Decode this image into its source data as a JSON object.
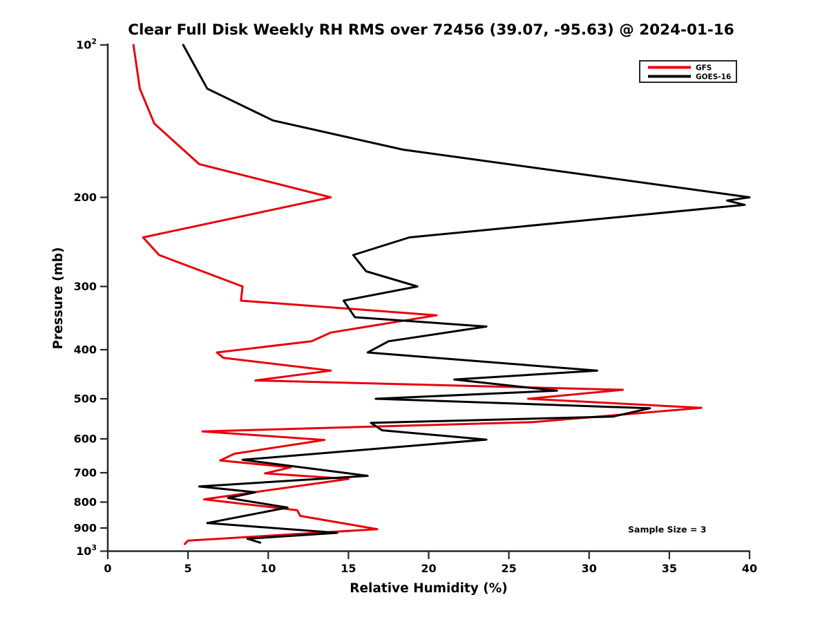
{
  "title": "Clear Full Disk Weekly RH RMS over 72456 (39.07, -95.63) @ 2024-01-16",
  "axes": {
    "x": {
      "label": "Relative Humidity (%)",
      "min": 0,
      "max": 40,
      "ticks": [
        0,
        5,
        10,
        15,
        20,
        25,
        30,
        35,
        40
      ]
    },
    "y": {
      "label": "Pressure (mb)",
      "scale": "log",
      "min": 100,
      "max": 1000,
      "inverted": true,
      "ticks": [
        100,
        200,
        300,
        400,
        500,
        600,
        700,
        800,
        900,
        1000
      ],
      "tick_labels": [
        "10^2",
        "200",
        "300",
        "400",
        "500",
        "600",
        "700",
        "800",
        "900",
        "10^3"
      ]
    }
  },
  "legend": {
    "position": "upper right",
    "items": [
      {
        "label": "GFS",
        "color": "#e8000b"
      },
      {
        "label": "GOES-16",
        "color": "#000000"
      }
    ]
  },
  "annotation": {
    "text": "Sample Size = 3"
  },
  "chart_data": {
    "type": "line",
    "title": "Clear Full Disk Weekly RH RMS over 72456 (39.07, -95.63) @ 2024-01-16",
    "xlabel": "Relative Humidity (%)",
    "ylabel": "Pressure (mb)",
    "xlim": [
      0,
      40
    ],
    "ylim": [
      100,
      1000
    ],
    "yscale": "log",
    "y_axis_inverted": true,
    "grid": false,
    "legend_position": "upper right",
    "annotation": "Sample Size = 3",
    "point_format": "[pressure_mb, rh_percent]",
    "series": [
      {
        "name": "GFS",
        "color": "#e8000b",
        "points": [
          [
            100,
            1.6
          ],
          [
            122,
            2.0
          ],
          [
            143,
            2.9
          ],
          [
            172,
            5.7
          ],
          [
            200,
            13.9
          ],
          [
            240,
            2.2
          ],
          [
            260,
            3.2
          ],
          [
            300,
            8.4
          ],
          [
            320,
            8.3
          ],
          [
            342,
            20.5
          ],
          [
            370,
            13.9
          ],
          [
            385,
            12.7
          ],
          [
            405,
            6.8
          ],
          [
            415,
            7.2
          ],
          [
            440,
            13.9
          ],
          [
            460,
            9.2
          ],
          [
            480,
            32.1
          ],
          [
            500,
            26.2
          ],
          [
            521,
            37.0
          ],
          [
            556,
            26.5
          ],
          [
            580,
            5.9
          ],
          [
            603,
            13.5
          ],
          [
            642,
            7.9
          ],
          [
            662,
            7.0
          ],
          [
            683,
            11.4
          ],
          [
            702,
            9.8
          ],
          [
            720,
            15.0
          ],
          [
            790,
            6.0
          ],
          [
            830,
            11.8
          ],
          [
            852,
            12.0
          ],
          [
            905,
            16.8
          ],
          [
            953,
            5.0
          ],
          [
            968,
            4.8
          ]
        ]
      },
      {
        "name": "GOES-16",
        "color": "#000000",
        "points": [
          [
            100,
            4.7
          ],
          [
            122,
            6.2
          ],
          [
            141,
            10.3
          ],
          [
            161,
            18.4
          ],
          [
            200,
            40.0
          ],
          [
            203,
            38.6
          ],
          [
            207,
            39.7
          ],
          [
            240,
            18.8
          ],
          [
            260,
            15.3
          ],
          [
            280,
            16.1
          ],
          [
            300,
            19.3
          ],
          [
            320,
            14.7
          ],
          [
            345,
            15.4
          ],
          [
            360,
            23.6
          ],
          [
            385,
            17.5
          ],
          [
            405,
            16.2
          ],
          [
            440,
            30.5
          ],
          [
            458,
            21.6
          ],
          [
            482,
            28.0
          ],
          [
            500,
            16.7
          ],
          [
            522,
            33.8
          ],
          [
            542,
            31.5
          ],
          [
            558,
            16.4
          ],
          [
            577,
            17.1
          ],
          [
            602,
            23.6
          ],
          [
            660,
            8.4
          ],
          [
            683,
            12.1
          ],
          [
            710,
            16.2
          ],
          [
            745,
            5.7
          ],
          [
            765,
            9.2
          ],
          [
            785,
            7.5
          ],
          [
            820,
            11.2
          ],
          [
            880,
            6.2
          ],
          [
            920,
            14.3
          ],
          [
            945,
            8.7
          ],
          [
            962,
            9.5
          ]
        ]
      }
    ]
  }
}
